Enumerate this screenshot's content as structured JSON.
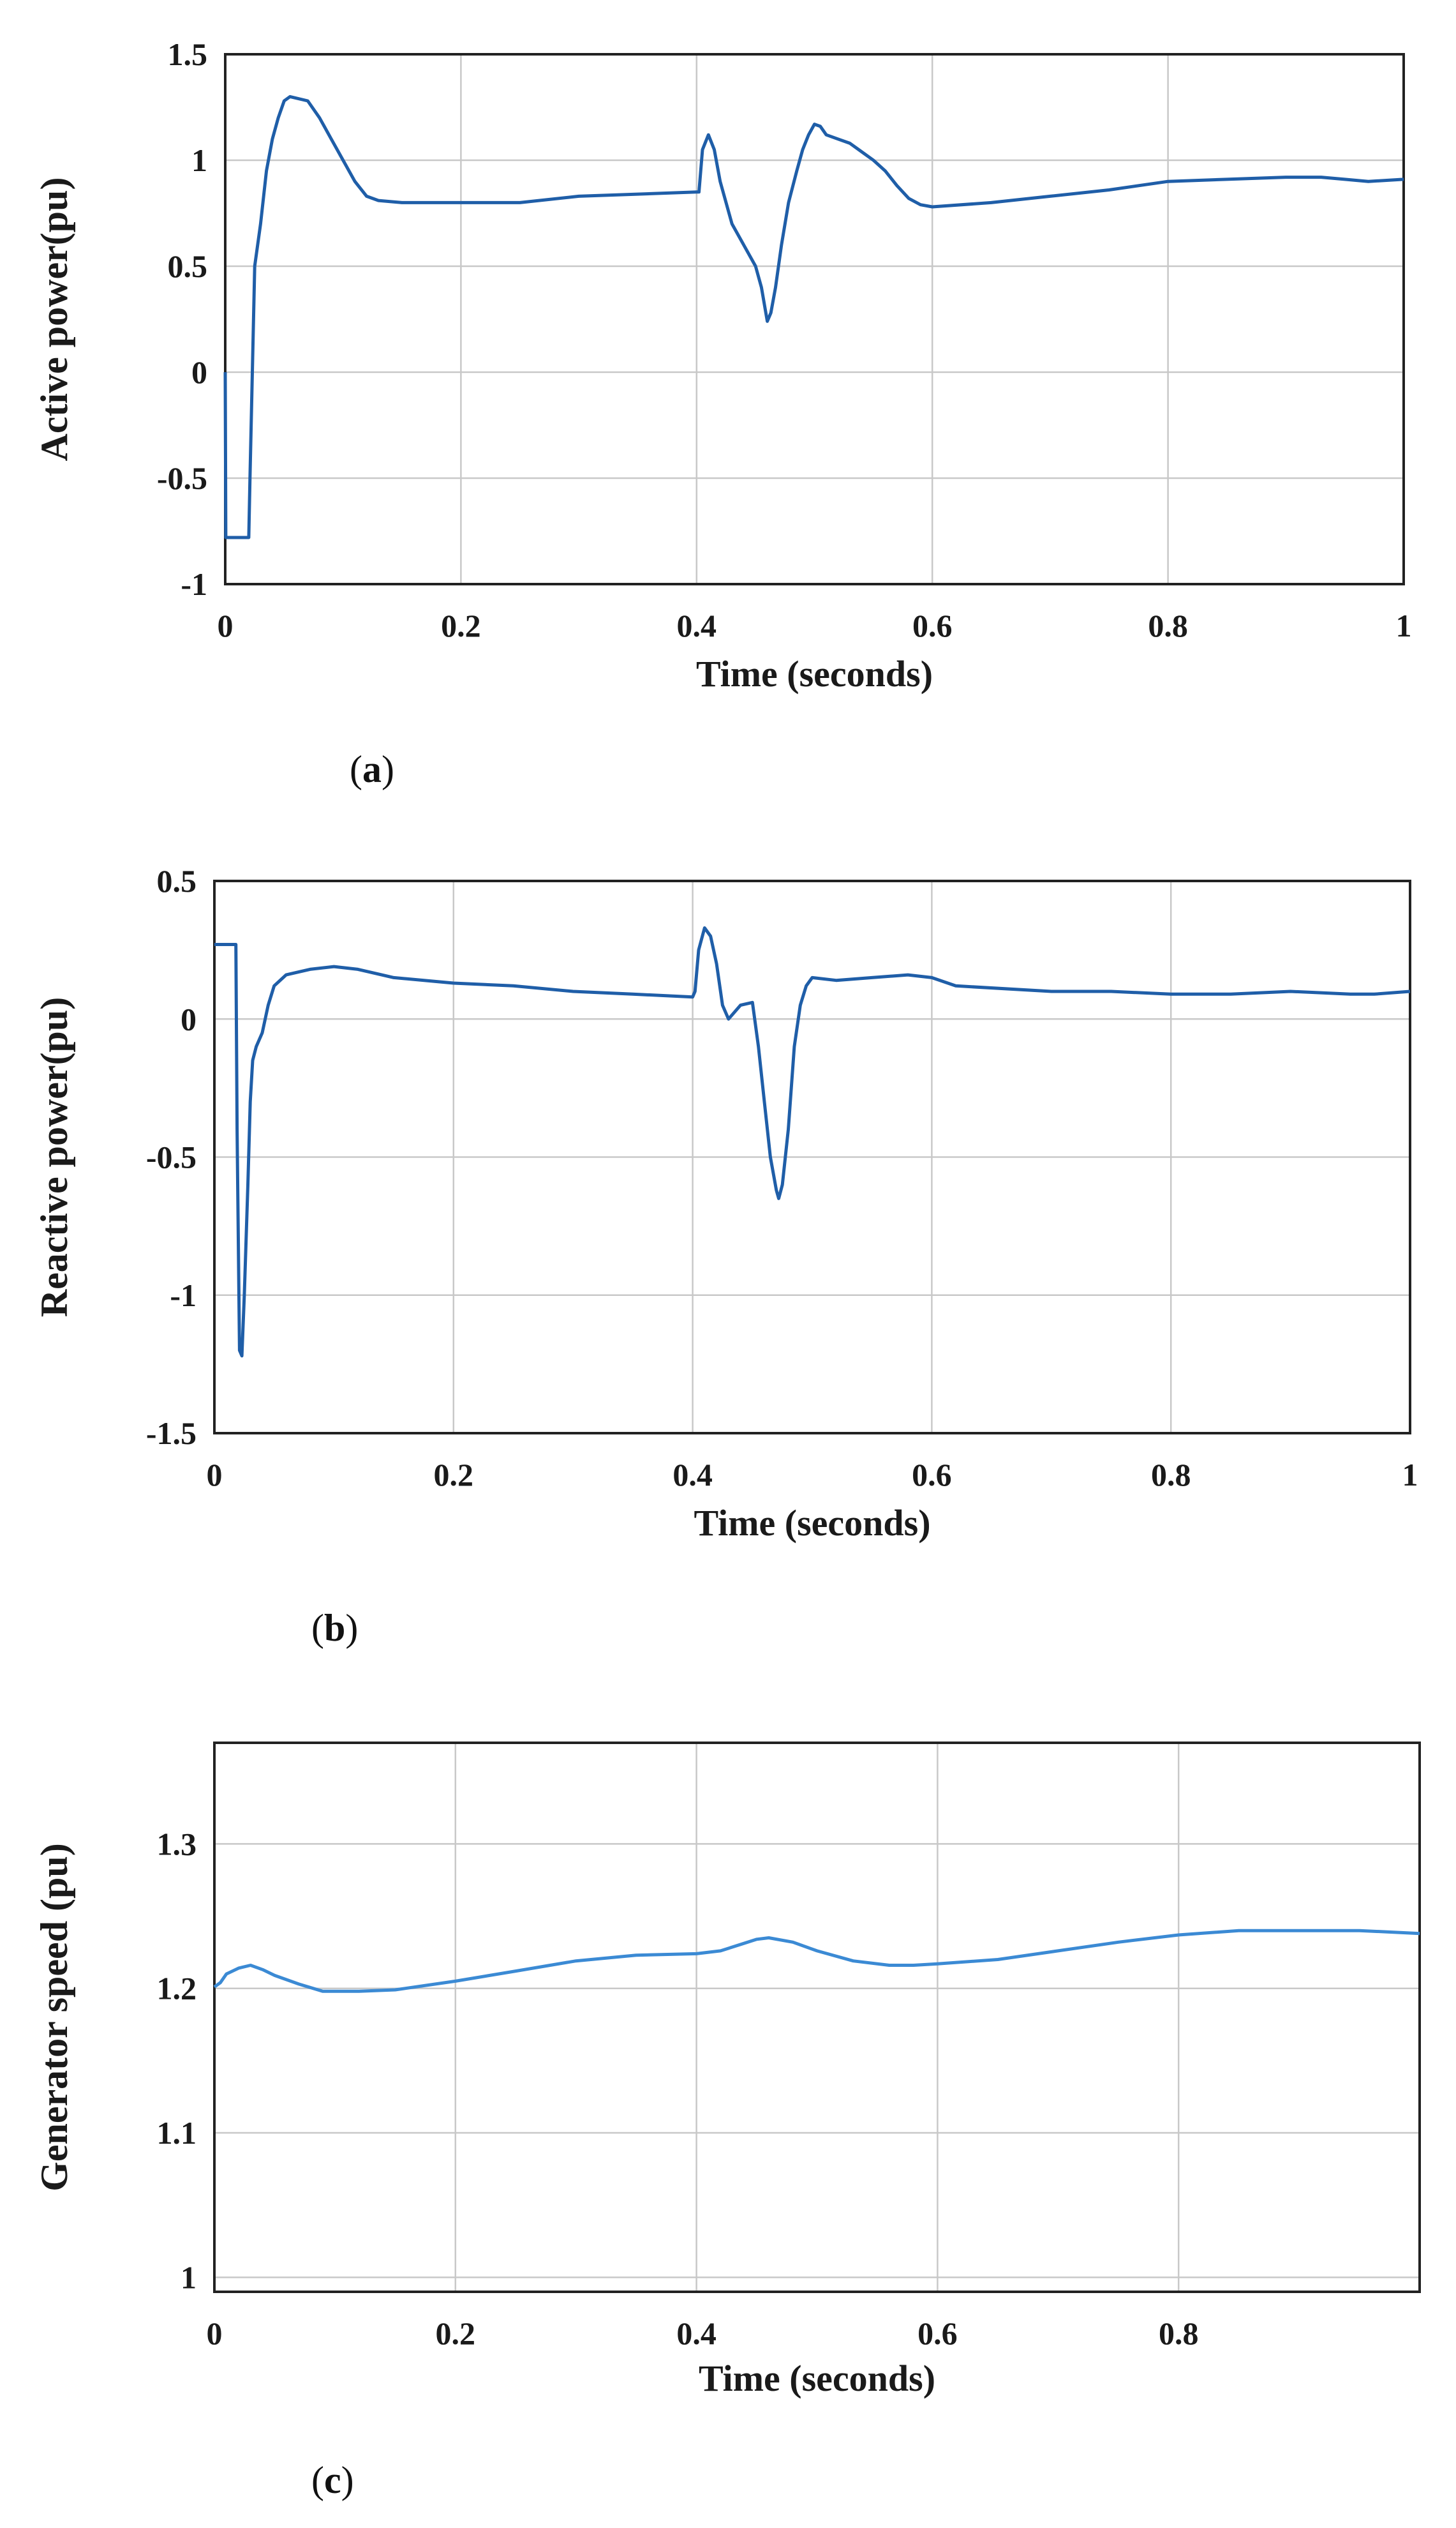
{
  "figure": {
    "captions": [
      {
        "pre": "(",
        "letter": "a",
        "post": ")"
      },
      {
        "pre": "(",
        "letter": "b",
        "post": ")"
      },
      {
        "pre": "(",
        "letter": "c",
        "post": ")"
      }
    ]
  },
  "colors": {
    "line_a": "#1f5ea8",
    "line_b": "#1f5ea8",
    "line_c": "#3b8ad4",
    "grid": "#c8c8c8",
    "axis": "#222222"
  },
  "chart_data": [
    {
      "type": "line",
      "title": "",
      "xlabel": "Time (seconds)",
      "ylabel": "Active power(pu)",
      "xlim": [
        0,
        1
      ],
      "ylim": [
        -1,
        1.5
      ],
      "xticks": [
        0,
        0.2,
        0.4,
        0.6,
        0.8,
        1
      ],
      "xtick_labels": [
        "0",
        "0.2",
        "0.4",
        "0.6",
        "0.8",
        "1"
      ],
      "yticks": [
        -1,
        -0.5,
        0,
        0.5,
        1,
        1.5
      ],
      "ytick_labels": [
        "-1",
        "-0.5",
        "0",
        "0.5",
        "1",
        "1.5"
      ],
      "grid": true,
      "series": [
        {
          "name": "Active power",
          "x": [
            0,
            0.0005,
            0.001,
            0.02,
            0.021,
            0.023,
            0.025,
            0.03,
            0.035,
            0.04,
            0.045,
            0.05,
            0.055,
            0.07,
            0.08,
            0.09,
            0.1,
            0.11,
            0.12,
            0.13,
            0.15,
            0.2,
            0.25,
            0.3,
            0.35,
            0.4,
            0.402,
            0.405,
            0.41,
            0.415,
            0.42,
            0.43,
            0.44,
            0.45,
            0.455,
            0.46,
            0.463,
            0.467,
            0.472,
            0.478,
            0.485,
            0.49,
            0.495,
            0.5,
            0.505,
            0.51,
            0.52,
            0.53,
            0.54,
            0.55,
            0.56,
            0.57,
            0.58,
            0.59,
            0.6,
            0.65,
            0.7,
            0.75,
            0.8,
            0.85,
            0.9,
            0.93,
            0.95,
            0.97,
            1.0
          ],
          "y": [
            0,
            -0.78,
            -0.78,
            -0.78,
            -0.5,
            0.0,
            0.5,
            0.7,
            0.95,
            1.1,
            1.2,
            1.28,
            1.3,
            1.28,
            1.2,
            1.1,
            1.0,
            0.9,
            0.83,
            0.81,
            0.8,
            0.8,
            0.8,
            0.83,
            0.84,
            0.85,
            0.85,
            1.05,
            1.12,
            1.05,
            0.9,
            0.7,
            0.6,
            0.5,
            0.4,
            0.24,
            0.28,
            0.4,
            0.6,
            0.8,
            0.95,
            1.05,
            1.12,
            1.17,
            1.16,
            1.12,
            1.1,
            1.08,
            1.04,
            1.0,
            0.95,
            0.88,
            0.82,
            0.79,
            0.78,
            0.8,
            0.83,
            0.86,
            0.9,
            0.91,
            0.92,
            0.92,
            0.91,
            0.9,
            0.91
          ]
        }
      ]
    },
    {
      "type": "line",
      "title": "",
      "xlabel": "Time (seconds)",
      "ylabel": "Reactive power(pu)",
      "xlim": [
        0,
        1
      ],
      "ylim": [
        -1.5,
        0.5
      ],
      "xticks": [
        0,
        0.2,
        0.4,
        0.6,
        0.8,
        1
      ],
      "xtick_labels": [
        "0",
        "0.2",
        "0.4",
        "0.6",
        "0.8",
        "1"
      ],
      "yticks": [
        -1.5,
        -1,
        -0.5,
        0,
        0.5
      ],
      "ytick_labels": [
        "-1.5",
        "-1",
        "-0.5",
        "0",
        "0.5"
      ],
      "grid": true,
      "series": [
        {
          "name": "Reactive power",
          "x": [
            0,
            0.018,
            0.019,
            0.021,
            0.023,
            0.025,
            0.028,
            0.03,
            0.032,
            0.035,
            0.04,
            0.045,
            0.05,
            0.06,
            0.08,
            0.1,
            0.12,
            0.15,
            0.2,
            0.25,
            0.3,
            0.35,
            0.4,
            0.402,
            0.405,
            0.41,
            0.415,
            0.42,
            0.425,
            0.43,
            0.44,
            0.45,
            0.455,
            0.46,
            0.465,
            0.47,
            0.472,
            0.475,
            0.48,
            0.485,
            0.49,
            0.495,
            0.5,
            0.52,
            0.55,
            0.58,
            0.6,
            0.62,
            0.7,
            0.75,
            0.8,
            0.85,
            0.9,
            0.95,
            0.97,
            1.0
          ],
          "y": [
            0.27,
            0.27,
            -0.4,
            -1.2,
            -1.22,
            -1.0,
            -0.6,
            -0.3,
            -0.15,
            -0.1,
            -0.05,
            0.05,
            0.12,
            0.16,
            0.18,
            0.19,
            0.18,
            0.15,
            0.13,
            0.12,
            0.1,
            0.09,
            0.08,
            0.1,
            0.25,
            0.33,
            0.3,
            0.2,
            0.05,
            0.0,
            0.05,
            0.06,
            -0.1,
            -0.3,
            -0.5,
            -0.62,
            -0.65,
            -0.6,
            -0.4,
            -0.1,
            0.05,
            0.12,
            0.15,
            0.14,
            0.15,
            0.16,
            0.15,
            0.12,
            0.1,
            0.1,
            0.09,
            0.09,
            0.1,
            0.09,
            0.09,
            0.1
          ]
        }
      ]
    },
    {
      "type": "line",
      "title": "",
      "xlabel": "Time (seconds)",
      "ylabel": "Generator speed (pu)",
      "xlim": [
        0,
        1
      ],
      "ylim": [
        0.99,
        1.37
      ],
      "xticks": [
        0,
        0.2,
        0.4,
        0.6,
        0.8
      ],
      "xtick_labels": [
        "0",
        "0.2",
        "0.4",
        "0.6",
        "0.8"
      ],
      "yticks": [
        1,
        1.1,
        1.2,
        1.3
      ],
      "ytick_labels": [
        "1",
        "1.1",
        "1.2",
        "1.3"
      ],
      "grid": true,
      "series": [
        {
          "name": "Generator speed",
          "x": [
            0,
            0.005,
            0.01,
            0.02,
            0.03,
            0.04,
            0.05,
            0.07,
            0.09,
            0.12,
            0.15,
            0.2,
            0.25,
            0.3,
            0.35,
            0.4,
            0.42,
            0.45,
            0.46,
            0.48,
            0.5,
            0.53,
            0.56,
            0.58,
            0.6,
            0.65,
            0.7,
            0.75,
            0.8,
            0.85,
            0.9,
            0.95,
            1.0
          ],
          "y": [
            1.201,
            1.204,
            1.21,
            1.214,
            1.216,
            1.213,
            1.209,
            1.203,
            1.198,
            1.198,
            1.199,
            1.205,
            1.212,
            1.219,
            1.223,
            1.224,
            1.226,
            1.234,
            1.235,
            1.232,
            1.226,
            1.219,
            1.216,
            1.216,
            1.217,
            1.22,
            1.226,
            1.232,
            1.237,
            1.24,
            1.24,
            1.24,
            1.238
          ]
        }
      ]
    }
  ]
}
